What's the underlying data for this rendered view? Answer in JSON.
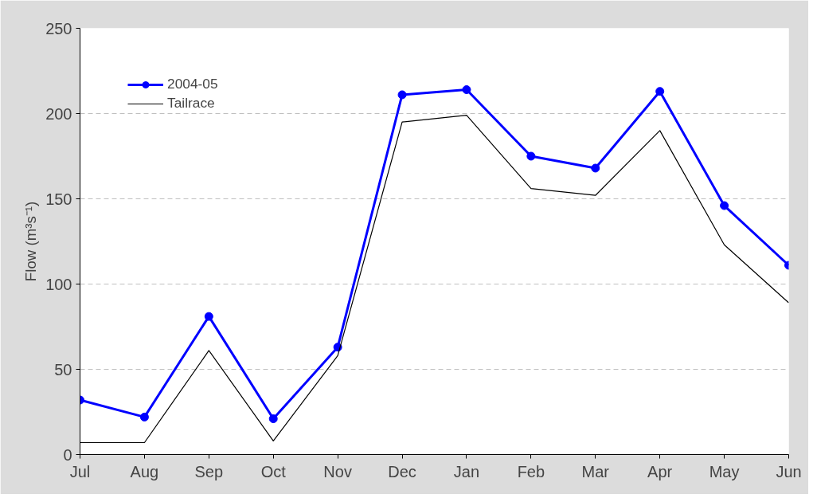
{
  "chart_data": {
    "type": "line",
    "ylabel": "Flow (m³s⁻¹)",
    "categories": [
      "Jul",
      "Aug",
      "Sep",
      "Oct",
      "Nov",
      "Dec",
      "Jan",
      "Feb",
      "Mar",
      "Apr",
      "May",
      "Jun"
    ],
    "series": [
      {
        "name": "2004-05",
        "color": "#0000ff",
        "marker": "circle",
        "values": [
          32,
          22,
          81,
          21,
          63,
          211,
          214,
          175,
          168,
          213,
          146,
          111
        ]
      },
      {
        "name": "Tailrace",
        "color": "#000000",
        "marker": "none",
        "values": [
          7,
          7,
          61,
          8,
          58,
          195,
          199,
          156,
          152,
          190,
          123,
          89
        ]
      }
    ],
    "ylim": [
      0,
      250
    ],
    "yticks": [
      0,
      50,
      100,
      150,
      200,
      250
    ],
    "grid": "y",
    "legend": "top left",
    "line_style": "solid"
  }
}
